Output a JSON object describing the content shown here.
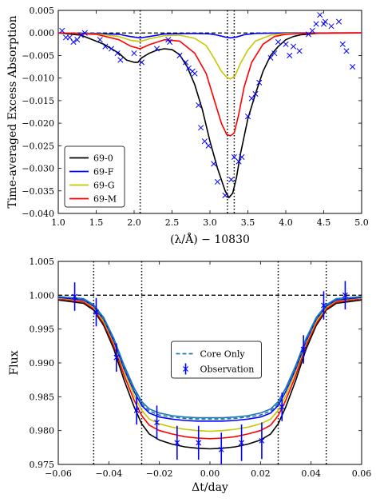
{
  "chart_data": [
    {
      "type": "line",
      "xlabel": "(λ/Å) − 10830",
      "ylabel": "Time-averaged Excess Absorption",
      "xlim": [
        1.0,
        5.0
      ],
      "ylim": [
        -0.04,
        0.005
      ],
      "xticks": [
        1.0,
        1.5,
        2.0,
        2.5,
        3.0,
        3.5,
        4.0,
        4.5,
        5.0
      ],
      "xtick_labels": [
        "1.0",
        "1.5",
        "2.0",
        "2.5",
        "3.0",
        "3.5",
        "4.0",
        "4.5",
        "5.0"
      ],
      "yticks": [
        -0.04,
        -0.035,
        -0.03,
        -0.025,
        -0.02,
        -0.015,
        -0.01,
        -0.005,
        0.0,
        0.005
      ],
      "ytick_labels": [
        "−0.040",
        "−0.035",
        "−0.030",
        "−0.025",
        "−0.020",
        "−0.015",
        "−0.010",
        "−0.005",
        "0.000",
        "0.005"
      ],
      "hlines": [
        0.0
      ],
      "vlines": [
        2.08,
        3.23,
        3.32
      ],
      "legend_position": "bottom-left",
      "series": [
        {
          "name": "69-0",
          "color": "#000000",
          "x": [
            1.0,
            1.3,
            1.6,
            1.8,
            1.9,
            2.0,
            2.05,
            2.1,
            2.2,
            2.3,
            2.4,
            2.5,
            2.6,
            2.7,
            2.8,
            2.9,
            3.0,
            3.1,
            3.2,
            3.25,
            3.3,
            3.35,
            3.4,
            3.5,
            3.6,
            3.7,
            3.8,
            3.9,
            4.0,
            4.1,
            4.2,
            4.4,
            4.6,
            5.0
          ],
          "y": [
            0.0,
            -0.0005,
            -0.0025,
            -0.0045,
            -0.006,
            -0.0065,
            -0.0065,
            -0.0055,
            -0.0045,
            -0.0038,
            -0.0035,
            -0.0037,
            -0.0048,
            -0.0075,
            -0.0115,
            -0.017,
            -0.024,
            -0.03,
            -0.035,
            -0.0365,
            -0.0355,
            -0.032,
            -0.027,
            -0.019,
            -0.0135,
            -0.0085,
            -0.005,
            -0.003,
            -0.0015,
            -0.0008,
            -0.0004,
            -0.0001,
            0.0,
            0.0
          ]
        },
        {
          "name": "69-F",
          "color": "#0000ff",
          "x": [
            1.0,
            1.5,
            1.8,
            1.95,
            2.08,
            2.2,
            2.4,
            2.8,
            3.0,
            3.1,
            3.2,
            3.27,
            3.35,
            3.45,
            3.6,
            4.0,
            5.0
          ],
          "y": [
            0.0,
            -0.0001,
            -0.0003,
            -0.0008,
            -0.0011,
            -0.0008,
            -0.0002,
            -0.0001,
            -0.0002,
            -0.0005,
            -0.0009,
            -0.0011,
            -0.0009,
            -0.0004,
            -0.0001,
            0.0,
            0.0
          ]
        },
        {
          "name": "69-G",
          "color": "#c8c800",
          "x": [
            1.0,
            1.5,
            1.8,
            1.95,
            2.08,
            2.2,
            2.4,
            2.6,
            2.8,
            2.95,
            3.05,
            3.15,
            3.22,
            3.27,
            3.33,
            3.4,
            3.5,
            3.6,
            3.8,
            4.0,
            5.0
          ],
          "y": [
            0.0,
            -0.0002,
            -0.0008,
            -0.0016,
            -0.0019,
            -0.0013,
            -0.0006,
            -0.0005,
            -0.0012,
            -0.0028,
            -0.0055,
            -0.0085,
            -0.0098,
            -0.0102,
            -0.0095,
            -0.0068,
            -0.0038,
            -0.0018,
            -0.0005,
            -0.0001,
            0.0
          ]
        },
        {
          "name": "69-M",
          "color": "#ff0000",
          "x": [
            1.0,
            1.5,
            1.8,
            1.95,
            2.08,
            2.2,
            2.4,
            2.6,
            2.8,
            2.95,
            3.05,
            3.15,
            3.22,
            3.27,
            3.32,
            3.38,
            3.45,
            3.55,
            3.7,
            3.85,
            4.0,
            4.2,
            5.0
          ],
          "y": [
            0.0,
            -0.0003,
            -0.0015,
            -0.0029,
            -0.0035,
            -0.0026,
            -0.0015,
            -0.0018,
            -0.0045,
            -0.009,
            -0.0145,
            -0.02,
            -0.0225,
            -0.0228,
            -0.0222,
            -0.018,
            -0.012,
            -0.0065,
            -0.0025,
            -0.0008,
            -0.0003,
            -0.0001,
            0.0
          ]
        },
        {
          "name": "",
          "color": "#0000ff",
          "marker": "x",
          "type": "scatter",
          "x": [
            1.05,
            1.1,
            1.15,
            1.2,
            1.25,
            1.3,
            1.35,
            1.55,
            1.62,
            1.7,
            1.78,
            1.82,
            2.0,
            2.1,
            2.3,
            2.45,
            2.47,
            2.6,
            2.68,
            2.72,
            2.77,
            2.8,
            2.85,
            2.88,
            2.93,
            2.98,
            3.05,
            3.1,
            3.2,
            3.28,
            3.32,
            3.38,
            3.42,
            3.5,
            3.55,
            3.6,
            3.65,
            3.8,
            3.85,
            3.9,
            4.0,
            4.05,
            4.1,
            4.18,
            4.3,
            4.35,
            4.4,
            4.45,
            4.5,
            4.52,
            4.6,
            4.7,
            4.75,
            4.8,
            4.88
          ],
          "y": [
            0.0005,
            -0.001,
            -0.001,
            -0.002,
            -0.0015,
            -0.0005,
            0.0,
            -0.0015,
            -0.003,
            -0.0035,
            -0.0045,
            -0.006,
            -0.0045,
            -0.0065,
            -0.0035,
            -0.0015,
            -0.002,
            -0.005,
            -0.0065,
            -0.0078,
            -0.0085,
            -0.009,
            -0.016,
            -0.021,
            -0.024,
            -0.025,
            -0.029,
            -0.033,
            -0.036,
            -0.0325,
            -0.0275,
            -0.0285,
            -0.0275,
            -0.0185,
            -0.0145,
            -0.0135,
            -0.011,
            -0.0055,
            -0.0045,
            -0.002,
            -0.0025,
            -0.005,
            -0.003,
            -0.004,
            -0.0003,
            0.0005,
            0.002,
            0.004,
            0.002,
            0.0025,
            0.0015,
            0.0025,
            -0.0025,
            -0.004,
            -0.0075
          ]
        }
      ]
    },
    {
      "type": "line",
      "xlabel": "Δt/day",
      "ylabel": "Flux",
      "xlim": [
        -0.06,
        0.06
      ],
      "ylim": [
        0.975,
        1.005
      ],
      "xticks": [
        -0.06,
        -0.04,
        -0.02,
        0.0,
        0.02,
        0.04,
        0.06
      ],
      "xtick_labels": [
        "−0.06",
        "−0.04",
        "−0.02",
        "0.00",
        "0.02",
        "0.04",
        "0.06"
      ],
      "yticks": [
        0.975,
        0.98,
        0.985,
        0.99,
        0.995,
        1.0,
        1.005
      ],
      "ytick_labels": [
        "0.975",
        "0.980",
        "0.985",
        "0.990",
        "0.995",
        "1.000",
        "1.005"
      ],
      "hlines": [
        1.0
      ],
      "vlines": [
        -0.046,
        -0.027,
        0.027,
        0.046
      ],
      "legend_position": "center",
      "series": [
        {
          "name": "",
          "color": "#000000",
          "x": [
            -0.06,
            -0.05,
            -0.046,
            -0.042,
            -0.038,
            -0.034,
            -0.03,
            -0.027,
            -0.024,
            -0.02,
            -0.015,
            -0.01,
            -0.005,
            0.0,
            0.005,
            0.01,
            0.015,
            0.02,
            0.024,
            0.027,
            0.03,
            0.034,
            0.038,
            0.042,
            0.046,
            0.05,
            0.06
          ],
          "y": [
            0.9993,
            0.9988,
            0.9978,
            0.9955,
            0.992,
            0.9875,
            0.9835,
            0.981,
            0.9795,
            0.9786,
            0.978,
            0.9776,
            0.9774,
            0.9773,
            0.9774,
            0.9776,
            0.978,
            0.9786,
            0.9795,
            0.981,
            0.9835,
            0.9875,
            0.992,
            0.9955,
            0.9978,
            0.9988,
            0.9993
          ]
        },
        {
          "name": "",
          "color": "#ff0000",
          "x": [
            -0.06,
            -0.05,
            -0.046,
            -0.042,
            -0.038,
            -0.034,
            -0.03,
            -0.027,
            -0.024,
            -0.02,
            -0.015,
            -0.01,
            -0.005,
            0.0,
            0.005,
            0.01,
            0.015,
            0.02,
            0.024,
            0.027,
            0.03,
            0.034,
            0.038,
            0.042,
            0.046,
            0.05,
            0.06
          ],
          "y": [
            0.9995,
            0.999,
            0.998,
            0.9958,
            0.9925,
            0.9882,
            0.9845,
            0.9822,
            0.9808,
            0.98,
            0.9795,
            0.9791,
            0.9789,
            0.9788,
            0.9789,
            0.9791,
            0.9795,
            0.98,
            0.9808,
            0.9822,
            0.9845,
            0.9882,
            0.9925,
            0.9958,
            0.998,
            0.999,
            0.9995
          ]
        },
        {
          "name": "",
          "color": "#c8c800",
          "x": [
            -0.06,
            -0.05,
            -0.046,
            -0.042,
            -0.038,
            -0.034,
            -0.03,
            -0.027,
            -0.024,
            -0.02,
            -0.015,
            -0.01,
            -0.005,
            0.0,
            0.005,
            0.01,
            0.015,
            0.02,
            0.024,
            0.027,
            0.03,
            0.034,
            0.038,
            0.042,
            0.046,
            0.05,
            0.06
          ],
          "y": [
            0.9996,
            0.9992,
            0.9982,
            0.9961,
            0.9929,
            0.9888,
            0.9852,
            0.983,
            0.9817,
            0.981,
            0.9805,
            0.9802,
            0.98,
            0.9799,
            0.98,
            0.9802,
            0.9805,
            0.981,
            0.9817,
            0.983,
            0.9852,
            0.9888,
            0.9929,
            0.9961,
            0.9982,
            0.9992,
            0.9996
          ]
        },
        {
          "name": "",
          "color": "#0000ff",
          "x": [
            -0.06,
            -0.05,
            -0.046,
            -0.042,
            -0.038,
            -0.034,
            -0.03,
            -0.027,
            -0.024,
            -0.02,
            -0.015,
            -0.01,
            -0.005,
            0.0,
            0.005,
            0.01,
            0.015,
            0.02,
            0.024,
            0.027,
            0.03,
            0.034,
            0.038,
            0.042,
            0.046,
            0.05,
            0.06
          ],
          "y": [
            0.9997,
            0.9993,
            0.9984,
            0.9964,
            0.9932,
            0.9892,
            0.9858,
            0.9837,
            0.9826,
            0.982,
            0.9817,
            0.9815,
            0.9814,
            0.9814,
            0.9814,
            0.9815,
            0.9817,
            0.982,
            0.9826,
            0.9837,
            0.9858,
            0.9892,
            0.9932,
            0.9964,
            0.9984,
            0.9993,
            0.9997
          ]
        },
        {
          "name": "Core Only",
          "color": "#1f77b4",
          "dash": true,
          "x": [
            -0.06,
            -0.05,
            -0.046,
            -0.042,
            -0.038,
            -0.034,
            -0.03,
            -0.027,
            -0.024,
            -0.02,
            -0.015,
            -0.01,
            -0.005,
            0.0,
            0.005,
            0.01,
            0.015,
            0.02,
            0.024,
            0.027,
            0.03,
            0.034,
            0.038,
            0.042,
            0.046,
            0.05,
            0.06
          ],
          "y": [
            0.9998,
            0.9994,
            0.9985,
            0.9965,
            0.9934,
            0.9894,
            0.986,
            0.984,
            0.9829,
            0.9823,
            0.982,
            0.9818,
            0.9817,
            0.9817,
            0.9817,
            0.9818,
            0.982,
            0.9823,
            0.9829,
            0.984,
            0.986,
            0.9894,
            0.9934,
            0.9965,
            0.9985,
            0.9994,
            0.9998
          ]
        },
        {
          "name": "",
          "color": "#1f77b4",
          "x": [
            -0.06,
            -0.05,
            -0.046,
            -0.042,
            -0.038,
            -0.034,
            -0.03,
            -0.027,
            -0.024,
            -0.02,
            -0.015,
            -0.01,
            -0.005,
            0.0,
            0.005,
            0.01,
            0.015,
            0.02,
            0.024,
            0.027,
            0.03,
            0.034,
            0.038,
            0.042,
            0.046,
            0.05,
            0.06
          ],
          "y": [
            0.9998,
            0.9995,
            0.9986,
            0.9967,
            0.9936,
            0.9897,
            0.9863,
            0.9843,
            0.9832,
            0.9826,
            0.9822,
            0.982,
            0.9819,
            0.9819,
            0.9819,
            0.982,
            0.9822,
            0.9826,
            0.9832,
            0.9843,
            0.9863,
            0.9897,
            0.9936,
            0.9967,
            0.9986,
            0.9995,
            0.9998
          ]
        }
      ],
      "observations": {
        "name": "Observation",
        "color": "#0000ff",
        "x": [
          -0.0535,
          -0.045,
          -0.037,
          -0.029,
          -0.021,
          -0.013,
          -0.0045,
          0.0045,
          0.0125,
          0.0205,
          0.0285,
          0.037,
          0.045,
          0.0535
        ],
        "y": [
          0.9998,
          0.9975,
          0.9908,
          0.983,
          0.9812,
          0.9782,
          0.9782,
          0.9772,
          0.9782,
          0.9785,
          0.9835,
          0.992,
          0.9985,
          1.0
        ],
        "err": [
          0.0021,
          0.0021,
          0.0021,
          0.0021,
          0.0025,
          0.0025,
          0.0025,
          0.0025,
          0.0027,
          0.0027,
          0.0021,
          0.0021,
          0.0021,
          0.0021
        ]
      }
    }
  ]
}
